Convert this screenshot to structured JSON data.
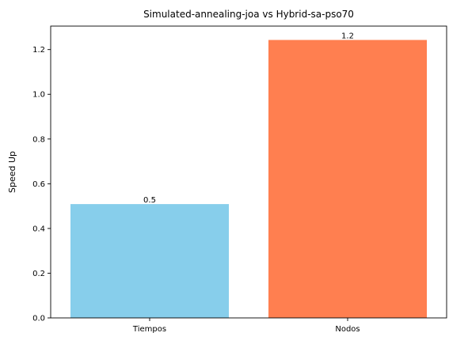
{
  "chart_data": {
    "type": "bar",
    "title": "Simulated-annealing-joa vs Hybrid-sa-pso70",
    "xlabel": "",
    "ylabel": "Speed Up",
    "categories": [
      "Tiempos",
      "Nodos"
    ],
    "values": [
      0.509,
      1.243
    ],
    "data_labels": [
      "0.5",
      "1.2"
    ],
    "colors": [
      "#87ceeb",
      "#ff7f50"
    ],
    "ylim": [
      0,
      1.305
    ],
    "yticks": [
      0.0,
      0.2,
      0.4,
      0.6,
      0.8,
      1.0,
      1.2
    ],
    "ytick_labels": [
      "0.0",
      "0.2",
      "0.4",
      "0.6",
      "0.8",
      "1.0",
      "1.2"
    ],
    "grid": false,
    "legend": false
  }
}
